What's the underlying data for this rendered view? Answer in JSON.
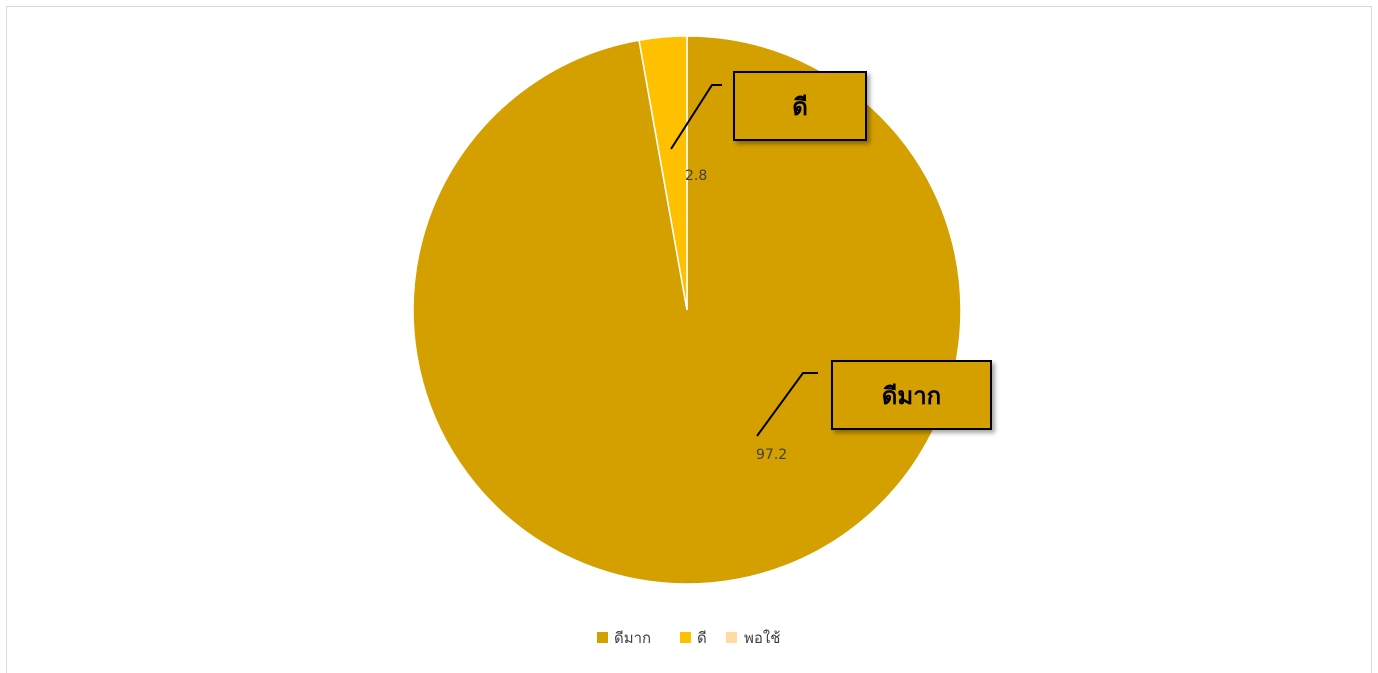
{
  "chart_data": {
    "type": "pie",
    "categories": [
      "ดีมาก",
      "ดี",
      "พอใช้"
    ],
    "values": [
      97.2,
      2.8,
      0
    ],
    "colors": [
      "#d4a000",
      "#ffc000",
      "#ffdba3"
    ],
    "data_labels": [
      "97.2",
      "2.8",
      ""
    ],
    "callouts": [
      "ดีมาก",
      "ดี"
    ],
    "legend": {
      "position": "bottom",
      "entries": [
        "ดีมาก",
        "ดี",
        "พอใช้"
      ]
    },
    "start_angle": "12 o'clock, clockwise"
  }
}
